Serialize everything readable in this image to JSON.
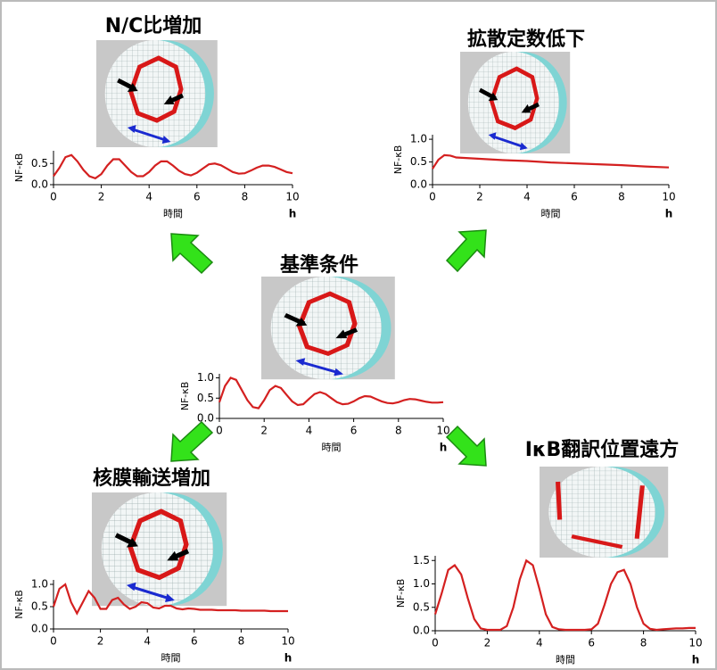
{
  "chart_data": [
    {
      "type": "line",
      "title": "N/C比増加",
      "x_label": "時間",
      "x_unit": "h",
      "y_label": "NF-κB",
      "color": "#d42020",
      "x": [
        0,
        0.25,
        0.5,
        0.75,
        1,
        1.25,
        1.5,
        1.75,
        2,
        2.25,
        2.5,
        2.75,
        3,
        3.25,
        3.5,
        3.75,
        4,
        4.25,
        4.5,
        4.75,
        5,
        5.25,
        5.5,
        5.75,
        6,
        6.25,
        6.5,
        6.75,
        7,
        7.25,
        7.5,
        7.75,
        8,
        8.25,
        8.5,
        8.75,
        9,
        9.25,
        9.5,
        9.75,
        10
      ],
      "values": [
        0.2,
        0.4,
        0.65,
        0.7,
        0.55,
        0.35,
        0.2,
        0.15,
        0.25,
        0.45,
        0.6,
        0.6,
        0.45,
        0.3,
        0.2,
        0.2,
        0.3,
        0.45,
        0.55,
        0.55,
        0.45,
        0.33,
        0.25,
        0.22,
        0.28,
        0.38,
        0.48,
        0.5,
        0.46,
        0.38,
        0.3,
        0.26,
        0.27,
        0.33,
        0.4,
        0.45,
        0.45,
        0.42,
        0.36,
        0.3,
        0.27
      ],
      "xlim": [
        0,
        10
      ],
      "ylim": [
        0,
        0.8
      ],
      "xticks": [
        0,
        2,
        4,
        6,
        8,
        10
      ],
      "yticks": [
        {
          "value": 0,
          "label": "0.0"
        },
        {
          "value": 0.5,
          "label": "0.5"
        }
      ]
    },
    {
      "type": "line",
      "title": "拡散定数低下",
      "x_label": "時間",
      "x_unit": "h",
      "y_label": "NF-κB",
      "color": "#d42020",
      "x": [
        0,
        0.25,
        0.5,
        0.75,
        1,
        2,
        3,
        4,
        5,
        6,
        7,
        8,
        9,
        10
      ],
      "values": [
        0.35,
        0.55,
        0.65,
        0.64,
        0.6,
        0.57,
        0.54,
        0.52,
        0.49,
        0.47,
        0.45,
        0.43,
        0.4,
        0.38
      ],
      "xlim": [
        0,
        10
      ],
      "ylim": [
        0,
        1.1
      ],
      "xticks": [
        0,
        2,
        4,
        6,
        8,
        10
      ],
      "yticks": [
        {
          "value": 0,
          "label": "0.0"
        },
        {
          "value": 0.5,
          "label": "0.5"
        },
        {
          "value": 1,
          "label": "1.0"
        }
      ]
    },
    {
      "type": "line",
      "title": "基準条件",
      "x_label": "時間",
      "x_unit": "h",
      "y_label": "NF-κB",
      "color": "#d42020",
      "x": [
        0,
        0.25,
        0.5,
        0.75,
        1,
        1.25,
        1.5,
        1.75,
        2,
        2.25,
        2.5,
        2.75,
        3,
        3.25,
        3.5,
        3.75,
        4,
        4.25,
        4.5,
        4.75,
        5,
        5.25,
        5.5,
        5.75,
        6,
        6.25,
        6.5,
        6.75,
        7,
        7.25,
        7.5,
        7.75,
        8,
        8.25,
        8.5,
        8.75,
        9,
        9.25,
        9.5,
        9.75,
        10
      ],
      "values": [
        0.4,
        0.8,
        1.0,
        0.95,
        0.7,
        0.45,
        0.28,
        0.25,
        0.45,
        0.7,
        0.8,
        0.75,
        0.58,
        0.42,
        0.33,
        0.35,
        0.48,
        0.6,
        0.65,
        0.6,
        0.5,
        0.4,
        0.35,
        0.36,
        0.42,
        0.5,
        0.55,
        0.54,
        0.48,
        0.42,
        0.38,
        0.37,
        0.4,
        0.45,
        0.48,
        0.47,
        0.44,
        0.41,
        0.39,
        0.39,
        0.4
      ],
      "xlim": [
        0,
        10
      ],
      "ylim": [
        0,
        1.1
      ],
      "xticks": [
        0,
        2,
        4,
        6,
        8,
        10
      ],
      "yticks": [
        {
          "value": 0,
          "label": "0.0"
        },
        {
          "value": 0.5,
          "label": "0.5"
        },
        {
          "value": 1,
          "label": "1.0"
        }
      ]
    },
    {
      "type": "line",
      "title": "核膜輸送増加",
      "x_label": "時間",
      "x_unit": "h",
      "y_label": "NF-κB",
      "color": "#d42020",
      "x": [
        0,
        0.25,
        0.5,
        0.75,
        1,
        1.25,
        1.5,
        1.75,
        2,
        2.25,
        2.5,
        2.75,
        3,
        3.25,
        3.5,
        3.75,
        4,
        4.25,
        4.5,
        4.75,
        5,
        5.25,
        5.5,
        5.75,
        6,
        6.25,
        6.5,
        6.75,
        7,
        7.25,
        7.5,
        7.75,
        8,
        8.25,
        8.5,
        8.75,
        9,
        9.25,
        9.5,
        9.75,
        10
      ],
      "values": [
        0.5,
        0.9,
        1.0,
        0.6,
        0.35,
        0.6,
        0.85,
        0.7,
        0.45,
        0.45,
        0.65,
        0.7,
        0.55,
        0.45,
        0.5,
        0.6,
        0.58,
        0.48,
        0.46,
        0.52,
        0.52,
        0.46,
        0.44,
        0.46,
        0.45,
        0.43,
        0.43,
        0.43,
        0.42,
        0.42,
        0.42,
        0.42,
        0.41,
        0.41,
        0.41,
        0.41,
        0.41,
        0.4,
        0.4,
        0.4,
        0.4
      ],
      "xlim": [
        0,
        10
      ],
      "ylim": [
        0,
        1.1
      ],
      "xticks": [
        0,
        2,
        4,
        6,
        8,
        10
      ],
      "yticks": [
        {
          "value": 0,
          "label": "0.0"
        },
        {
          "value": 0.5,
          "label": "0.5"
        },
        {
          "value": 1,
          "label": "1.0"
        }
      ]
    },
    {
      "type": "line",
      "title": "IκB翻訳位置遠方",
      "x_label": "時間",
      "x_unit": "h",
      "y_label": "NF-κB",
      "color": "#d42020",
      "x": [
        0,
        0.25,
        0.5,
        0.75,
        1,
        1.25,
        1.5,
        1.75,
        2,
        2.25,
        2.5,
        2.75,
        3,
        3.25,
        3.5,
        3.75,
        4,
        4.25,
        4.5,
        4.75,
        5,
        5.25,
        5.5,
        5.75,
        6,
        6.25,
        6.5,
        6.75,
        7,
        7.25,
        7.5,
        7.75,
        8,
        8.25,
        8.5,
        8.75,
        9,
        9.25,
        9.5,
        9.75,
        10
      ],
      "values": [
        0.35,
        0.8,
        1.3,
        1.4,
        1.2,
        0.7,
        0.25,
        0.05,
        0.02,
        0.02,
        0.02,
        0.1,
        0.5,
        1.1,
        1.5,
        1.4,
        0.9,
        0.35,
        0.08,
        0.03,
        0.02,
        0.02,
        0.02,
        0.02,
        0.03,
        0.15,
        0.55,
        1.0,
        1.25,
        1.3,
        1.0,
        0.5,
        0.15,
        0.04,
        0.02,
        0.03,
        0.04,
        0.05,
        0.05,
        0.06,
        0.06
      ],
      "xlim": [
        0,
        10
      ],
      "ylim": [
        0,
        1.6
      ],
      "xticks": [
        0,
        2,
        4,
        6,
        8,
        10
      ],
      "yticks": [
        {
          "value": 0,
          "label": "0.0"
        },
        {
          "value": 0.5,
          "label": "0.5"
        },
        {
          "value": 1,
          "label": "1.0"
        },
        {
          "value": 1.5,
          "label": "1.5"
        }
      ]
    }
  ]
}
